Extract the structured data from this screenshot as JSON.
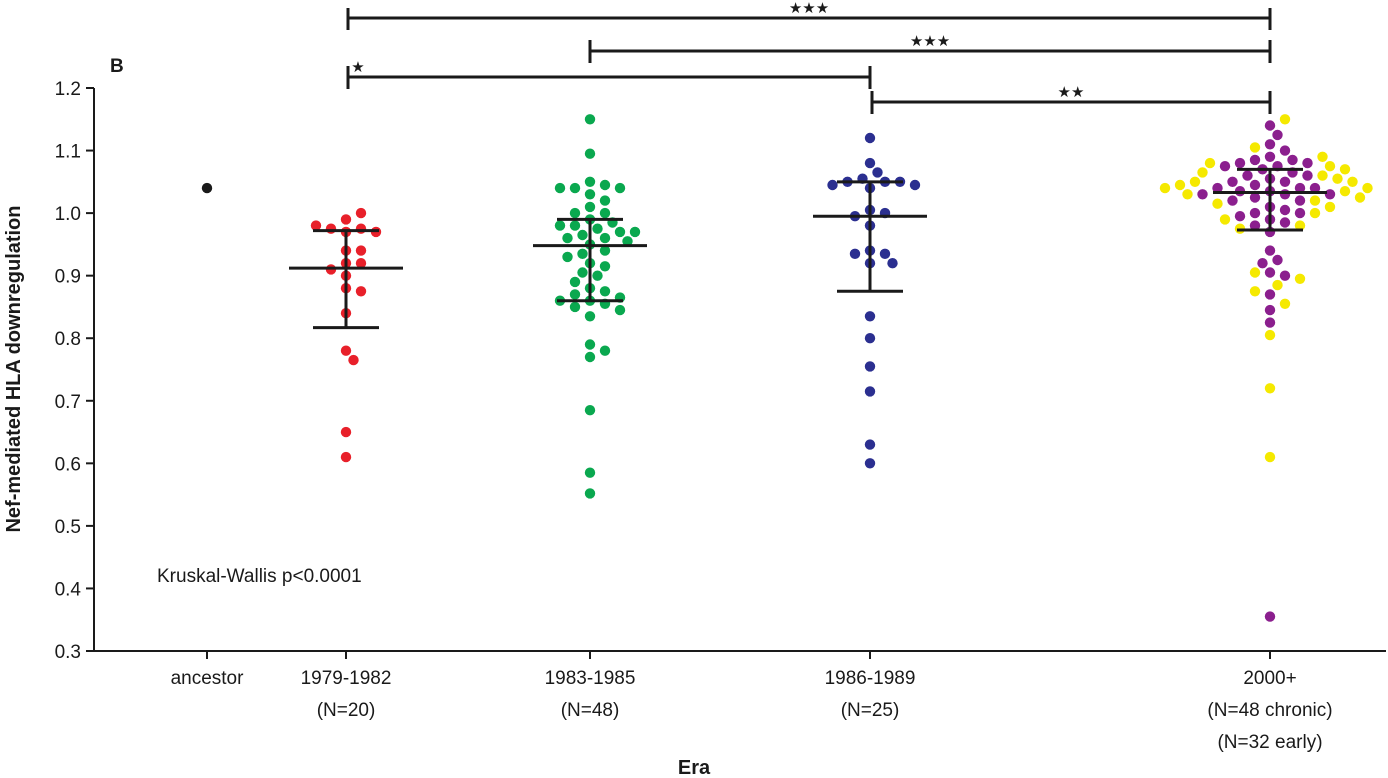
{
  "chart_data": {
    "type": "scatter",
    "panel_label": "B",
    "xlabel": "Era",
    "ylabel": "Nef-mediated HLA downregulation",
    "ylim": [
      0.3,
      1.2
    ],
    "yticks": [
      "0.3",
      "0.4",
      "0.5",
      "0.6",
      "0.7",
      "0.8",
      "0.9",
      "1.0",
      "1.1",
      "1.2"
    ],
    "grid": false,
    "annotation": "Kruskal-Wallis p<0.0001",
    "categories": [
      {
        "key": "ancestor",
        "lines": [
          "ancestor"
        ]
      },
      {
        "key": "1979-1982",
        "lines": [
          "1979-1982",
          "(N=20)"
        ]
      },
      {
        "key": "1983-1985",
        "lines": [
          "1983-1985",
          "(N=48)"
        ]
      },
      {
        "key": "1986-1989",
        "lines": [
          "1986-1989",
          "(N=25)"
        ]
      },
      {
        "key": "2000+",
        "lines": [
          "2000+",
          "(N=48 chronic)",
          "(N=32 early)"
        ]
      }
    ],
    "series": [
      {
        "category": "ancestor",
        "color": "#1a1a1a",
        "values": [
          1.04
        ]
      },
      {
        "category": "1979-1982",
        "color": "#e8202a",
        "values": [
          0.99,
          0.97,
          0.975,
          0.975,
          0.97,
          0.98,
          1.0,
          0.94,
          0.94,
          0.92,
          0.92,
          0.9,
          0.91,
          0.88,
          0.875,
          0.84,
          0.78,
          0.765,
          0.65,
          0.61
        ]
      },
      {
        "category": "1983-1985",
        "color": "#0aa84f",
        "values": [
          1.15,
          1.095,
          1.05,
          1.045,
          1.04,
          1.04,
          1.04,
          1.03,
          1.02,
          1.01,
          1.0,
          1.0,
          0.99,
          0.985,
          0.98,
          0.98,
          0.975,
          0.97,
          0.97,
          0.965,
          0.96,
          0.96,
          0.955,
          0.95,
          0.94,
          0.935,
          0.93,
          0.92,
          0.915,
          0.905,
          0.9,
          0.89,
          0.88,
          0.875,
          0.87,
          0.865,
          0.86,
          0.86,
          0.855,
          0.85,
          0.845,
          0.835,
          0.79,
          0.78,
          0.77,
          0.685,
          0.585,
          0.552
        ]
      },
      {
        "category": "1986-1989",
        "color": "#2b2f90",
        "values": [
          1.12,
          1.08,
          1.065,
          1.055,
          1.05,
          1.05,
          1.05,
          1.045,
          1.045,
          1.04,
          1.005,
          1.0,
          0.995,
          0.98,
          0.94,
          0.935,
          0.935,
          0.92,
          0.92,
          0.835,
          0.8,
          0.755,
          0.715,
          0.63,
          0.6
        ]
      },
      {
        "category": "2000+",
        "name": "chronic",
        "color": "#8b1f8e",
        "values": [
          1.14,
          1.125,
          1.11,
          1.1,
          1.09,
          1.085,
          1.085,
          1.08,
          1.08,
          1.075,
          1.075,
          1.07,
          1.065,
          1.06,
          1.06,
          1.055,
          1.05,
          1.05,
          1.045,
          1.04,
          1.04,
          1.04,
          1.035,
          1.035,
          1.03,
          1.03,
          1.03,
          1.025,
          1.02,
          1.02,
          1.01,
          1.005,
          1.0,
          1.0,
          0.995,
          0.99,
          0.985,
          0.98,
          0.97,
          0.94,
          0.925,
          0.92,
          0.905,
          0.9,
          0.87,
          0.845,
          0.825,
          0.355
        ]
      },
      {
        "category": "2000+",
        "name": "early",
        "color": "#f5e900",
        "values": [
          1.15,
          1.105,
          1.09,
          1.08,
          1.075,
          1.07,
          1.065,
          1.06,
          1.055,
          1.05,
          1.05,
          1.045,
          1.04,
          1.04,
          1.035,
          1.03,
          1.025,
          1.02,
          1.015,
          1.01,
          1.0,
          0.99,
          0.98,
          0.975,
          0.905,
          0.895,
          0.885,
          0.875,
          0.855,
          0.805,
          0.72,
          0.61
        ]
      }
    ],
    "summary": [
      {
        "category": "1979-1982",
        "center": 0.912,
        "low": 0.817,
        "high": 0.972
      },
      {
        "category": "1983-1985",
        "center": 0.948,
        "low": 0.86,
        "high": 0.99
      },
      {
        "category": "1986-1989",
        "center": 0.995,
        "low": 0.875,
        "high": 1.05
      },
      {
        "category": "2000+",
        "center": 1.033,
        "low": 0.973,
        "high": 1.07
      }
    ],
    "comparisons": [
      {
        "from": "1979-1982",
        "to": "2000+",
        "stars": "★★★"
      },
      {
        "from": "1983-1985",
        "to": "2000+",
        "stars": "★★★"
      },
      {
        "from": "1979-1982",
        "to": "1986-1989",
        "stars": "★"
      },
      {
        "from": "1986-1989",
        "to": "2000+",
        "stars": "★★"
      }
    ]
  }
}
